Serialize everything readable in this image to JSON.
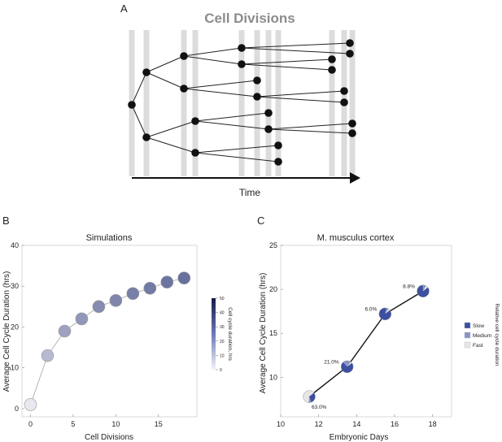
{
  "panels": {
    "a": {
      "letter": "A",
      "title": "Cell Divisions",
      "axis_label": "Time"
    },
    "b": {
      "letter": "B",
      "colorbar_title": "Cell cycle duration, hrs",
      "colorbar_ticks": [
        "50",
        "40",
        "30",
        "20",
        "10",
        "0"
      ]
    },
    "c": {
      "letter": "C",
      "legend_title": "Relative cell cycle duration",
      "legend": [
        {
          "label": "Slow",
          "color": "#3c4fa0"
        },
        {
          "label": "Medium",
          "color": "#8894c8"
        },
        {
          "label": "Fast",
          "color": "#e6e6e9"
        }
      ]
    }
  },
  "chart_data": [
    {
      "type": "scatter",
      "title": "Simulations",
      "xlabel": "Cell Divisions",
      "ylabel": "Average Cell Cycle Duration (hrs)",
      "xlim": [
        -1,
        19.5
      ],
      "ylim": [
        -2,
        40
      ],
      "xticks": [
        0,
        5,
        10,
        15
      ],
      "yticks": [
        0,
        10,
        20,
        30,
        40
      ],
      "x": [
        0,
        2,
        4,
        6,
        8,
        10,
        12,
        14,
        16,
        18
      ],
      "y": [
        1,
        13,
        19,
        22,
        25,
        26.5,
        28.2,
        29.5,
        31,
        32
      ],
      "color_scale": {
        "min": 0,
        "max": 50,
        "low_color": "#ececf3",
        "high_color": "#1e2a6e"
      }
    },
    {
      "type": "scatter",
      "title": "M. musculus cortex",
      "xlabel": "Embryonic Days",
      "ylabel": "Average Cell Cycle Duration (hrs)",
      "xlim": [
        10,
        19
      ],
      "ylim": [
        5.5,
        25
      ],
      "xticks": [
        10,
        12,
        14,
        16,
        18
      ],
      "yticks": [
        10,
        15,
        20,
        25
      ],
      "points": [
        {
          "x": 11.5,
          "y": 7.8,
          "slow": 0.3,
          "medium": 0.07,
          "fast": 0.63,
          "label": "63.0%"
        },
        {
          "x": 13.5,
          "y": 11.2,
          "slow": 0.74,
          "medium": 0.21,
          "fast": 0.05,
          "label": "21.0%"
        },
        {
          "x": 15.5,
          "y": 17.2,
          "slow": 0.89,
          "medium": 0.06,
          "fast": 0.05,
          "label": "6.0%"
        },
        {
          "x": 17.5,
          "y": 19.8,
          "slow": 0.85,
          "medium": 0.088,
          "fast": 0.062,
          "label": "8.8%"
        }
      ]
    }
  ]
}
